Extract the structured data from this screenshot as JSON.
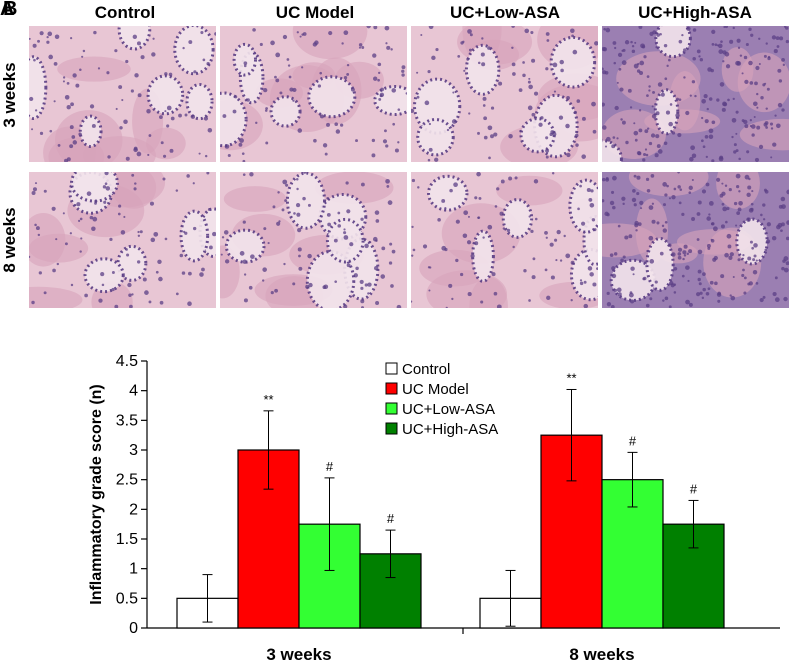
{
  "panel_a": {
    "letters": [
      "B",
      "A"
    ],
    "columns": [
      "Control",
      "UC Model",
      "UC+Low-ASA",
      "UC+High-ASA"
    ],
    "rows": [
      "3 weeks",
      "8 weeks"
    ],
    "micrograph_colors": {
      "background": "#e8c6d4",
      "stroma": "#d7a3bb",
      "nuclei": "#5b3f86",
      "dense": "#9b7fb2"
    }
  },
  "chart_data": {
    "type": "bar",
    "categories": [
      "3 weeks",
      "8 weeks"
    ],
    "series": [
      {
        "name": "Control",
        "color": "#ffffff",
        "values": [
          0.5,
          0.5
        ],
        "errors": [
          0.4,
          0.47
        ],
        "sig": [
          "",
          ""
        ]
      },
      {
        "name": "UC Model",
        "color": "#ff0000",
        "values": [
          3.0,
          3.25
        ],
        "errors": [
          0.66,
          0.77
        ],
        "sig": [
          "**",
          "**"
        ]
      },
      {
        "name": "UC+Low-ASA",
        "color": "#33ff33",
        "values": [
          1.75,
          2.5
        ],
        "errors": [
          0.78,
          0.46
        ],
        "sig": [
          "#",
          "#"
        ]
      },
      {
        "name": "UC+High-ASA",
        "color": "#008000",
        "values": [
          1.25,
          1.75
        ],
        "errors": [
          0.4,
          0.4
        ],
        "sig": [
          "#",
          "#"
        ]
      }
    ],
    "ylabel": "Inflammatory grade score (n)",
    "ylim": [
      0,
      4.5
    ],
    "yticks": [
      "0",
      "0.5",
      "1",
      "1.5",
      "2",
      "2.5",
      "3",
      "3.5",
      "4",
      "4.5"
    ],
    "grid": false,
    "legend": "top-center"
  }
}
